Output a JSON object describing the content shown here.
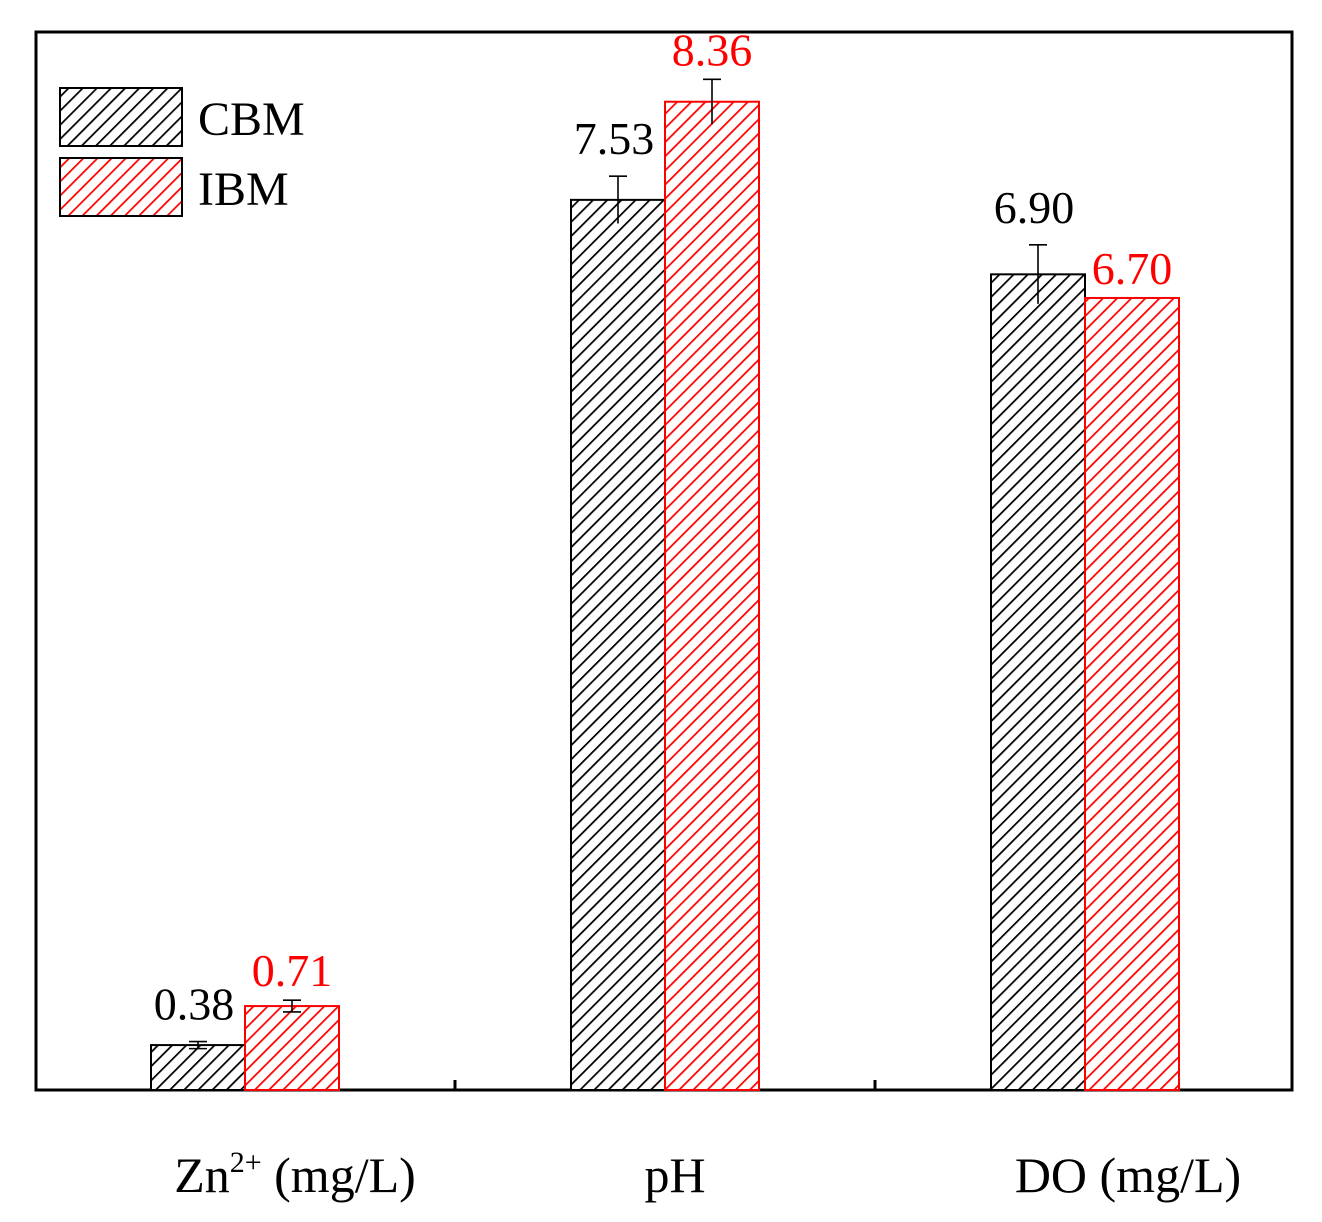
{
  "chart_data": {
    "type": "bar",
    "title": "",
    "xlabel": "",
    "ylabel": "",
    "ylim": [
      0,
      8.95
    ],
    "grid": false,
    "legend_position": "top-left",
    "categories": [
      {
        "base": "Zn",
        "sup": "2+",
        "suffix": " (mg/L)"
      },
      {
        "base": "pH",
        "sup": "",
        "suffix": ""
      },
      {
        "base": "DO",
        "sup": "",
        "suffix": " (mg/L)"
      }
    ],
    "series": [
      {
        "name": "CBM",
        "color": "#000000",
        "values": [
          0.38,
          7.53,
          6.9
        ],
        "labels": [
          "0.38",
          "7.53",
          "6.90"
        ],
        "errors": [
          0.03,
          0.2,
          0.25
        ]
      },
      {
        "name": "IBM",
        "color": "#ff0000",
        "values": [
          0.71,
          8.36,
          6.7
        ],
        "labels": [
          "0.71",
          "8.36",
          "6.70"
        ],
        "errors": [
          0.05,
          0.19,
          0.0
        ]
      }
    ]
  }
}
